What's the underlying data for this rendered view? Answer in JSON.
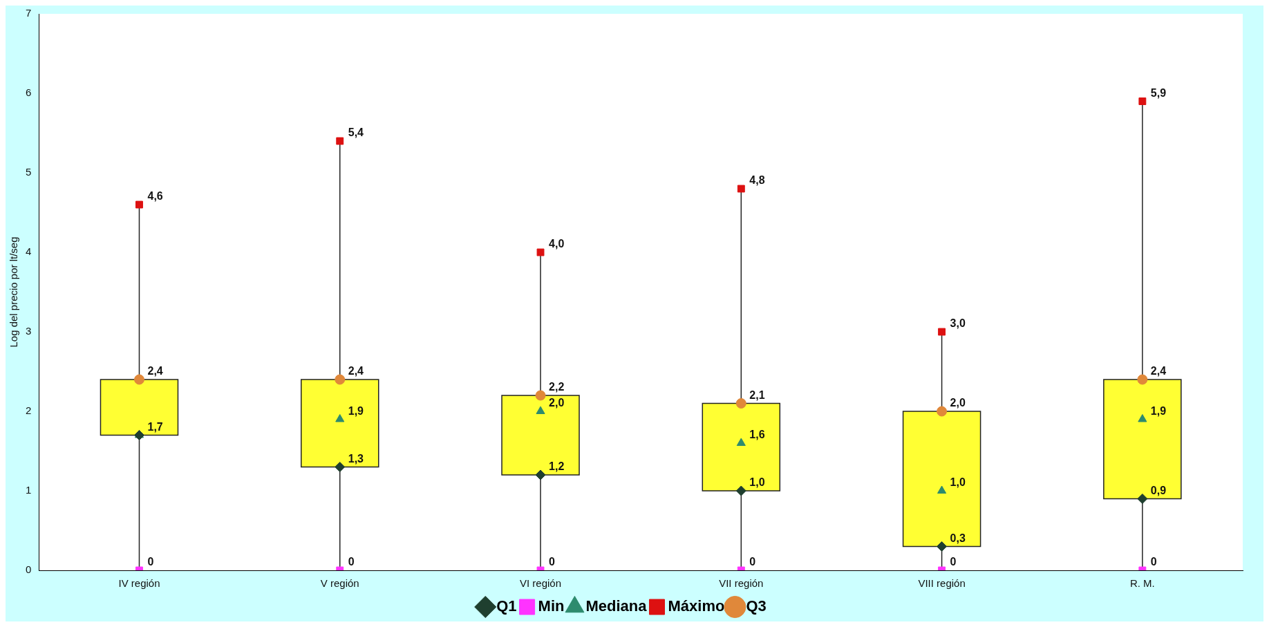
{
  "chart_data": {
    "type": "box",
    "ylabel": "Log del precio por lt/seg",
    "categories": [
      "IV región",
      "V región",
      "VI región",
      "VII región",
      "VIII región",
      "R. M."
    ],
    "color": "#ffff33",
    "boxes": [
      {
        "low": 0,
        "q1": 1.7,
        "q3": 2.4,
        "high": 4.6
      },
      {
        "low": 0,
        "q1": 1.3,
        "q3": 2.4,
        "high": 5.4
      },
      {
        "low": 0,
        "q1": 1.2,
        "q3": 2.2,
        "high": 4.0
      },
      {
        "low": 0,
        "q1": 1.0,
        "q3": 2.1,
        "high": 4.8
      },
      {
        "low": 0,
        "q1": 0.3,
        "q3": 2.0,
        "high": 3.0
      },
      {
        "low": 0,
        "q1": 0.9,
        "q3": 2.4,
        "high": 5.9
      }
    ],
    "series": [
      {
        "name": "Q1",
        "type": "scatter",
        "marker": "diamond",
        "color": "#1f3f2f",
        "x": [
          "IV región",
          "V región",
          "VI región",
          "VII región",
          "VIII región",
          "R. M."
        ],
        "values": [
          1.7,
          1.3,
          1.2,
          1.0,
          0.3,
          0.9
        ],
        "value_labels": [
          null,
          "1,3",
          "1,2",
          "1,0",
          "0,3",
          "0,9"
        ]
      },
      {
        "name": "Min",
        "type": "scatter",
        "marker": "square",
        "color": "#ff33ff",
        "x": [
          "IV región",
          "V región",
          "VI región",
          "VII región",
          "VIII región",
          "R. M."
        ],
        "values": [
          0,
          0,
          0,
          0,
          0,
          0
        ],
        "value_labels": [
          "0",
          "0",
          "0",
          "0",
          "0",
          "0"
        ]
      },
      {
        "name": "Mediana",
        "type": "scatter",
        "marker": "triangle",
        "color": "#2e8b6e",
        "x": [
          "IV región",
          "V región",
          "VI región",
          "VII región",
          "VIII región",
          "R. M."
        ],
        "values": [
          1.7,
          1.9,
          2.0,
          1.6,
          1.0,
          1.9
        ],
        "value_labels": [
          "1,7",
          "1,9",
          "2,0",
          "1,6",
          "1,0",
          "1,9"
        ]
      },
      {
        "name": "Máximo",
        "type": "scatter",
        "marker": "square",
        "color": "#dd1111",
        "x": [
          "IV región",
          "V región",
          "VI región",
          "VII región",
          "VIII región",
          "R. M."
        ],
        "values": [
          4.6,
          5.4,
          4.0,
          4.8,
          3.0,
          5.9
        ],
        "value_labels": [
          "4,6",
          "5,4",
          "4,0",
          "4,8",
          "3,0",
          "5,9"
        ]
      },
      {
        "name": "Q3",
        "type": "scatter",
        "marker": "circle",
        "color": "#e0883a",
        "x": [
          "IV región",
          "V región",
          "VI región",
          "VII región",
          "VIII región",
          "R. M."
        ],
        "values": [
          2.4,
          2.4,
          2.2,
          2.1,
          2.0,
          2.4
        ],
        "value_labels": [
          "2,4",
          "2,4",
          "2,2",
          "2,1",
          "2,0",
          "2,4"
        ]
      }
    ],
    "ylim": [
      0,
      7
    ],
    "yticks": [
      0,
      1,
      2,
      3,
      4,
      5,
      6,
      7
    ],
    "grid": false,
    "legend": "bottom"
  }
}
